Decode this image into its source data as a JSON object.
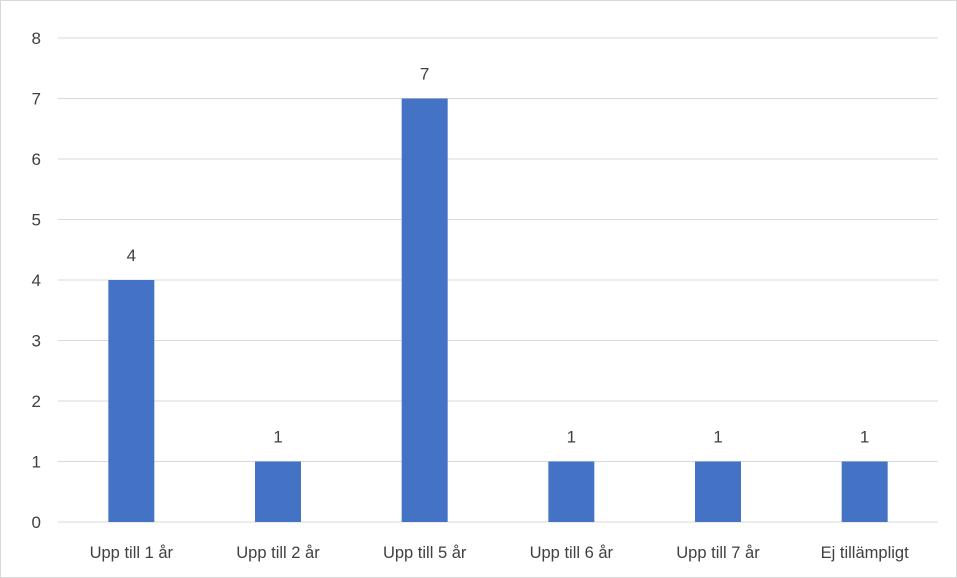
{
  "chart_data": {
    "type": "bar",
    "categories": [
      "Upp till 1 år",
      "Upp till 2 år",
      "Upp till 5 år",
      "Upp till 6 år",
      "Upp till 7 år",
      "Ej tillämpligt"
    ],
    "values": [
      4,
      1,
      7,
      1,
      1,
      1
    ],
    "data_labels": [
      "4",
      "1",
      "7",
      "1",
      "1",
      "1"
    ],
    "y_ticks": [
      "0",
      "1",
      "2",
      "3",
      "4",
      "5",
      "6",
      "7",
      "8"
    ],
    "ylim": [
      0,
      8
    ],
    "grid": true,
    "legend": "none",
    "bar_color": "#4472c4",
    "grid_color": "#d9d9d9"
  }
}
